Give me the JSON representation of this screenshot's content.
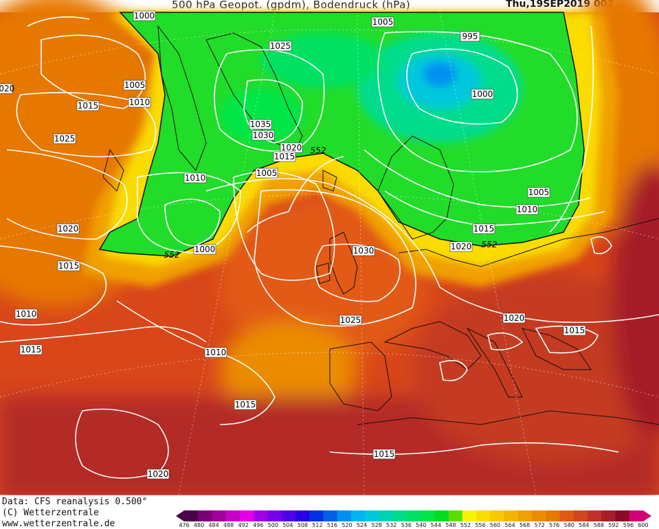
{
  "header": {
    "title": "500 hPa Geopot. (gpdm), Bodendruck (hPa)",
    "date": "Thu,19SEP2019 00Z"
  },
  "footer": {
    "data_source": "Data: CFS reanalysis 0.500°",
    "copyright": "(C) Wetterzentrale",
    "website": "www.wetterzentrale.de"
  },
  "colorscale": {
    "ticks": [
      "476",
      "480",
      "484",
      "488",
      "492",
      "496",
      "500",
      "504",
      "508",
      "512",
      "516",
      "520",
      "524",
      "528",
      "532",
      "536",
      "540",
      "544",
      "548",
      "552",
      "556",
      "560",
      "564",
      "568",
      "572",
      "576",
      "580",
      "584",
      "588",
      "592",
      "596",
      "600"
    ],
    "colors": [
      "#4b004b",
      "#7a0078",
      "#a0009e",
      "#c800c8",
      "#e600e6",
      "#a000e6",
      "#7800e6",
      "#5000e6",
      "#2800e6",
      "#0030e6",
      "#0060e6",
      "#0090f0",
      "#00b4f0",
      "#00c8dc",
      "#00d2b4",
      "#00dc8c",
      "#00e164",
      "#00e646",
      "#00dc1e",
      "#5adc00",
      "#f5f500",
      "#fadc00",
      "#fac800",
      "#f5b400",
      "#f0a000",
      "#eb8c00",
      "#e67800",
      "#e15a14",
      "#d2461e",
      "#be3228",
      "#a51e28",
      "#8c0a28",
      "#d20078"
    ]
  },
  "map": {
    "isobar_labels": [
      "1000",
      "1005",
      "1025",
      "1005",
      "995",
      "1020",
      "1015",
      "1010",
      "1000",
      "1035",
      "1030",
      "1020",
      "1015",
      "552",
      "1025",
      "1010",
      "1005",
      "1005",
      "1010",
      "1020",
      "1015",
      "1015",
      "1030",
      "1000",
      "552",
      "1020",
      "552",
      "1010",
      "1025",
      "1020",
      "1015",
      "1015",
      "1010",
      "1015",
      "1015",
      "1020"
    ]
  }
}
